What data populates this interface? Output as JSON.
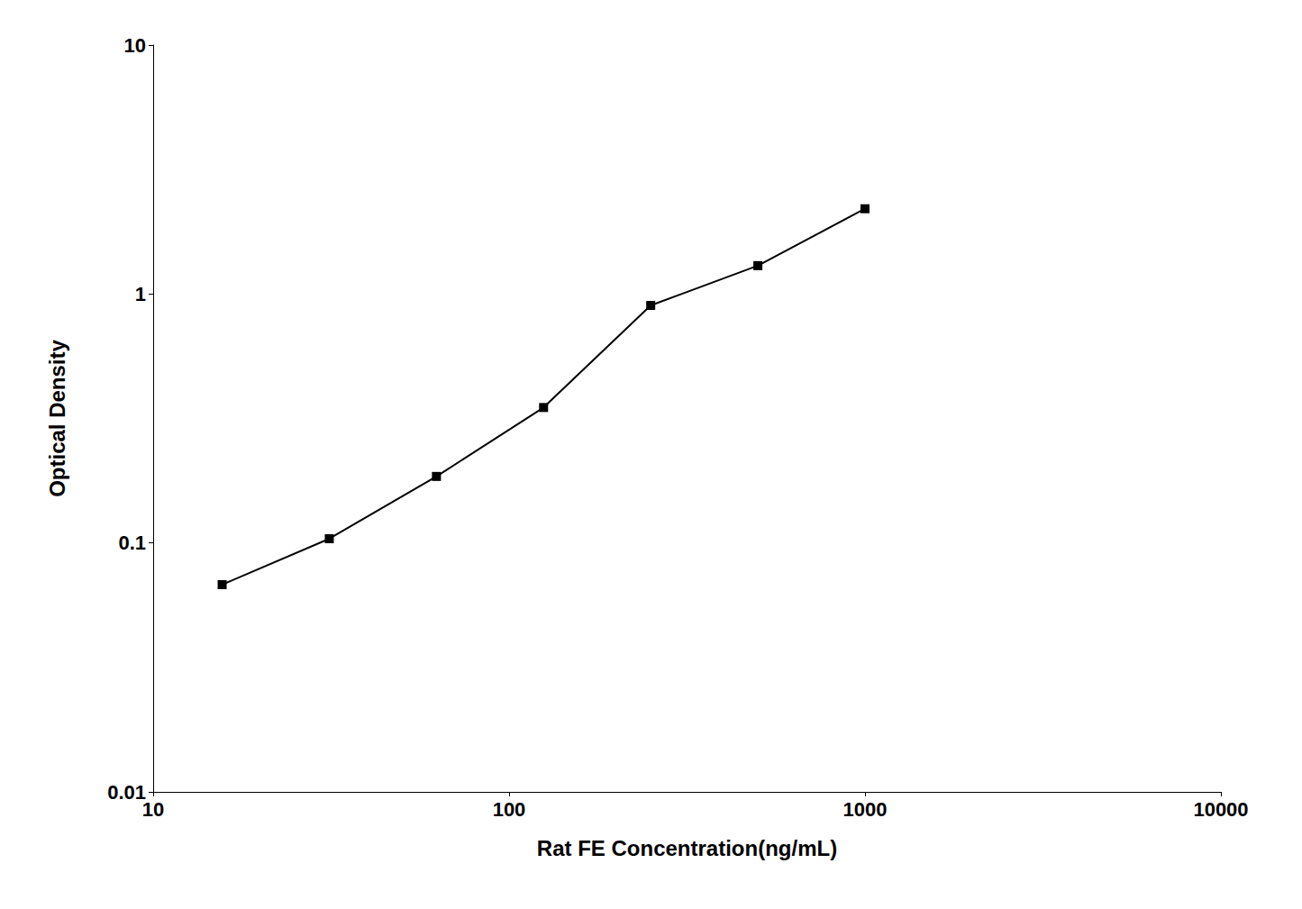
{
  "chart_data": {
    "type": "line",
    "x": [
      15.625,
      31.25,
      62.5,
      125,
      250,
      500,
      1000
    ],
    "values": [
      0.068,
      0.104,
      0.185,
      0.35,
      0.9,
      1.3,
      2.2
    ],
    "xlabel": "Rat FE Concentration(ng/mL)",
    "ylabel": "Optical Density",
    "xlim": [
      10,
      10000
    ],
    "ylim": [
      0.01,
      10
    ],
    "xticks": [
      10,
      100,
      1000,
      10000
    ],
    "yticks": [
      0.01,
      0.1,
      1,
      10
    ],
    "log": true,
    "color": "#000000",
    "marker": "square",
    "grid": false
  }
}
